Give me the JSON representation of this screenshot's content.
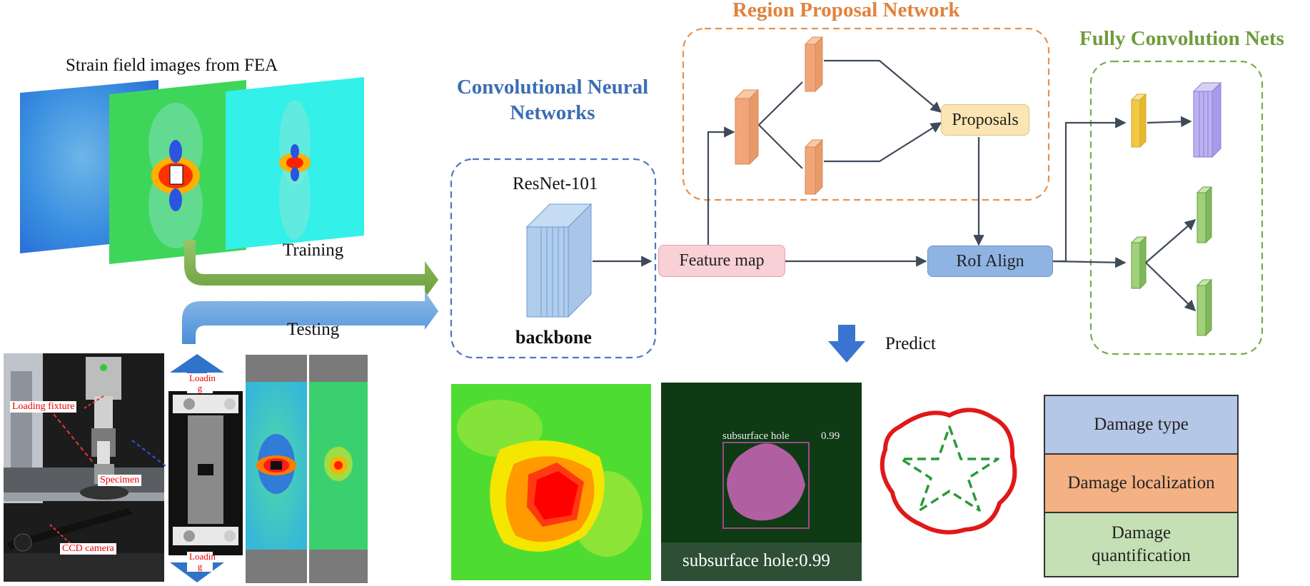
{
  "strain": {
    "title": "Strain field images from FEA"
  },
  "arrows": {
    "training": "Training",
    "testing": "Testing",
    "predict": "Predict"
  },
  "photo": {
    "loading_fixture": "Loading fixture",
    "specimen": "Specimen",
    "ccd_camera": "CCD camera",
    "load_top": "Loadin\ng",
    "load_bottom": "Loadin\ng"
  },
  "cnn": {
    "title": "Convolutional Neural\nNetworks",
    "model": "ResNet-101",
    "backbone": "backbone"
  },
  "rpn": {
    "title": "Region Proposal Network",
    "proposals": "Proposals"
  },
  "fcn": {
    "title": "Fully Convolution Nets"
  },
  "nodes": {
    "feature_map": "Feature map",
    "roi_align": "RoI Align"
  },
  "result": {
    "bbox_label": "subsurface hole",
    "score": "0.99",
    "caption": "subsurface hole:0.99"
  },
  "legend": {
    "damage_type": "Damage type",
    "damage_localization": "Damage localization",
    "damage_quantification": "Damage\nquantification"
  },
  "colors": {
    "cnn_blue": "#3b6db5",
    "rpn_orange": "#e0823d",
    "fcn_green": "#6f9c3d",
    "feature_map_fill": "#f8d0d6",
    "roi_fill": "#8fb4e3",
    "proposals_fill": "#fbe6b3",
    "legend_type": "#b4c7e7",
    "legend_localization": "#f4b183",
    "legend_quantification": "#c5e0b4"
  }
}
